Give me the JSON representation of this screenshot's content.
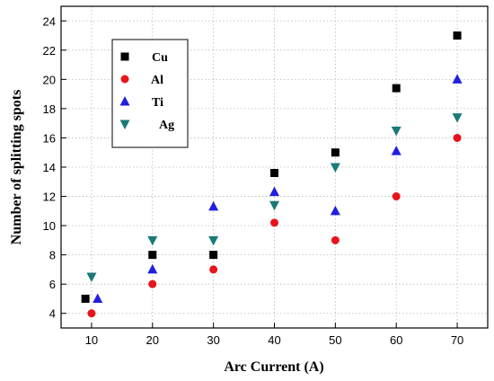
{
  "chart_data": {
    "type": "scatter",
    "title": "",
    "xlabel": "Arc  Current  (A)",
    "ylabel": "Number  of splitting spots",
    "xlim": [
      5,
      75
    ],
    "ylim": [
      3,
      25
    ],
    "x_ticks": [
      10,
      20,
      30,
      40,
      50,
      60,
      70
    ],
    "y_ticks": [
      4,
      6,
      8,
      10,
      12,
      14,
      16,
      18,
      20,
      22,
      24
    ],
    "grid": true,
    "legend_position": "top-left",
    "series": [
      {
        "name": "Cu",
        "marker": "square",
        "color": "#000000",
        "points": [
          [
            9,
            5
          ],
          [
            20,
            8
          ],
          [
            30,
            8
          ],
          [
            40,
            13.6
          ],
          [
            50,
            15
          ],
          [
            60,
            19.4
          ],
          [
            70,
            23
          ]
        ]
      },
      {
        "name": "Al",
        "marker": "circle",
        "color": "#e8141b",
        "points": [
          [
            10,
            4
          ],
          [
            20,
            6
          ],
          [
            30,
            7
          ],
          [
            40,
            10.2
          ],
          [
            50,
            9
          ],
          [
            60,
            12
          ],
          [
            70,
            16
          ]
        ]
      },
      {
        "name": "Ti",
        "marker": "triangle-up",
        "color": "#1f1fe0",
        "points": [
          [
            11,
            5
          ],
          [
            20,
            7
          ],
          [
            30,
            11.3
          ],
          [
            40,
            12.3
          ],
          [
            50,
            11
          ],
          [
            60,
            15.1
          ],
          [
            70,
            20
          ]
        ]
      },
      {
        "name": "Ag",
        "marker": "triangle-down",
        "color": "#1a7a78",
        "points": [
          [
            10,
            6.5
          ],
          [
            20,
            9
          ],
          [
            30,
            9
          ],
          [
            40,
            11.4
          ],
          [
            50,
            14
          ],
          [
            60,
            16.5
          ],
          [
            70,
            17.4
          ]
        ]
      }
    ]
  }
}
